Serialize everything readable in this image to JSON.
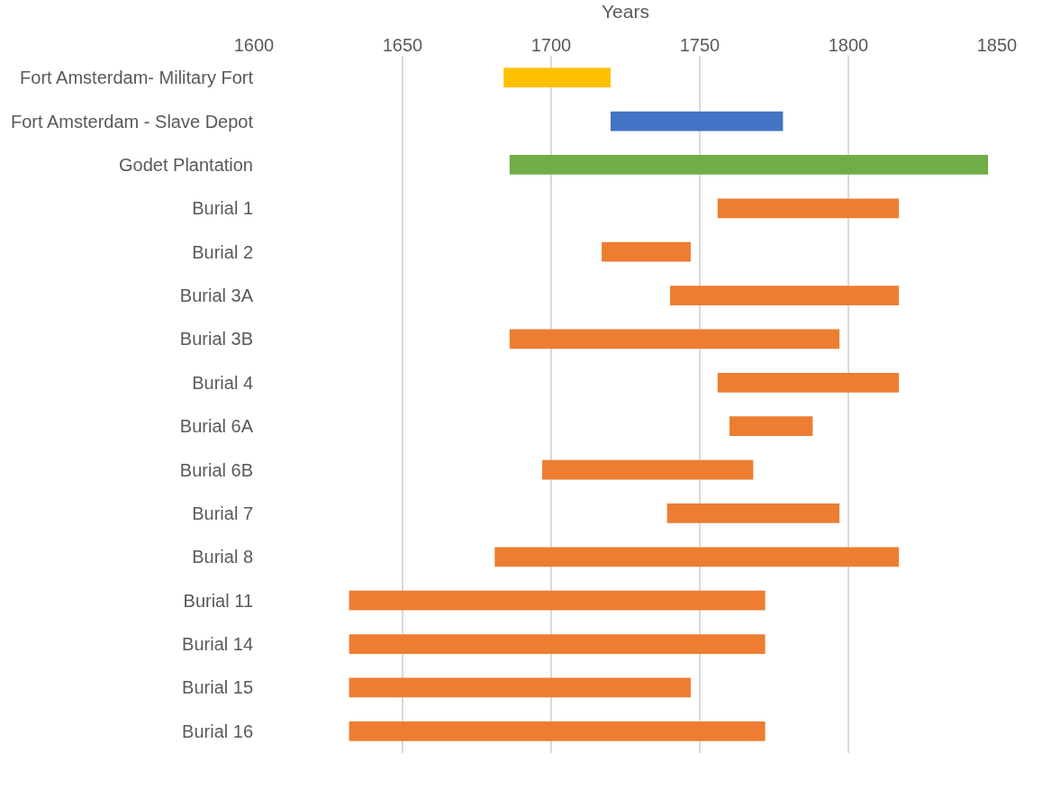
{
  "chart_data": {
    "type": "bar",
    "orientation": "horizontal",
    "xlabel": "Years",
    "categories": [
      "Fort Amsterdam- Military Fort",
      "Fort Amsterdam - Slave Depot",
      "Godet Plantation",
      "Burial 1",
      "Burial 2",
      "Burial 3A",
      "Burial 3B",
      "Burial 4",
      "Burial 6A",
      "Burial 6B",
      "Burial 7",
      "Burial 8",
      "Burial 11",
      "Burial 14",
      "Burial 15",
      "Burial 16"
    ],
    "base": [
      1684,
      1720,
      1686,
      1756,
      1717,
      1740,
      1686,
      1756,
      1760,
      1697,
      1739,
      1681,
      1632,
      1632,
      1632,
      1632
    ],
    "values": [
      36,
      58,
      161,
      61,
      30,
      77,
      111,
      61,
      28,
      71,
      58,
      136,
      140,
      140,
      115,
      140
    ],
    "colors": [
      "#ffc000",
      "#4472c4",
      "#70ad47",
      "#ed7d31",
      "#ed7d31",
      "#ed7d31",
      "#ed7d31",
      "#ed7d31",
      "#ed7d31",
      "#ed7d31",
      "#ed7d31",
      "#ed7d31",
      "#ed7d31",
      "#ed7d31",
      "#ed7d31",
      "#ed7d31"
    ],
    "xlim": [
      1600,
      1850
    ],
    "xticks": [
      1600,
      1650,
      1700,
      1750,
      1800,
      1850
    ],
    "grid": "x"
  }
}
